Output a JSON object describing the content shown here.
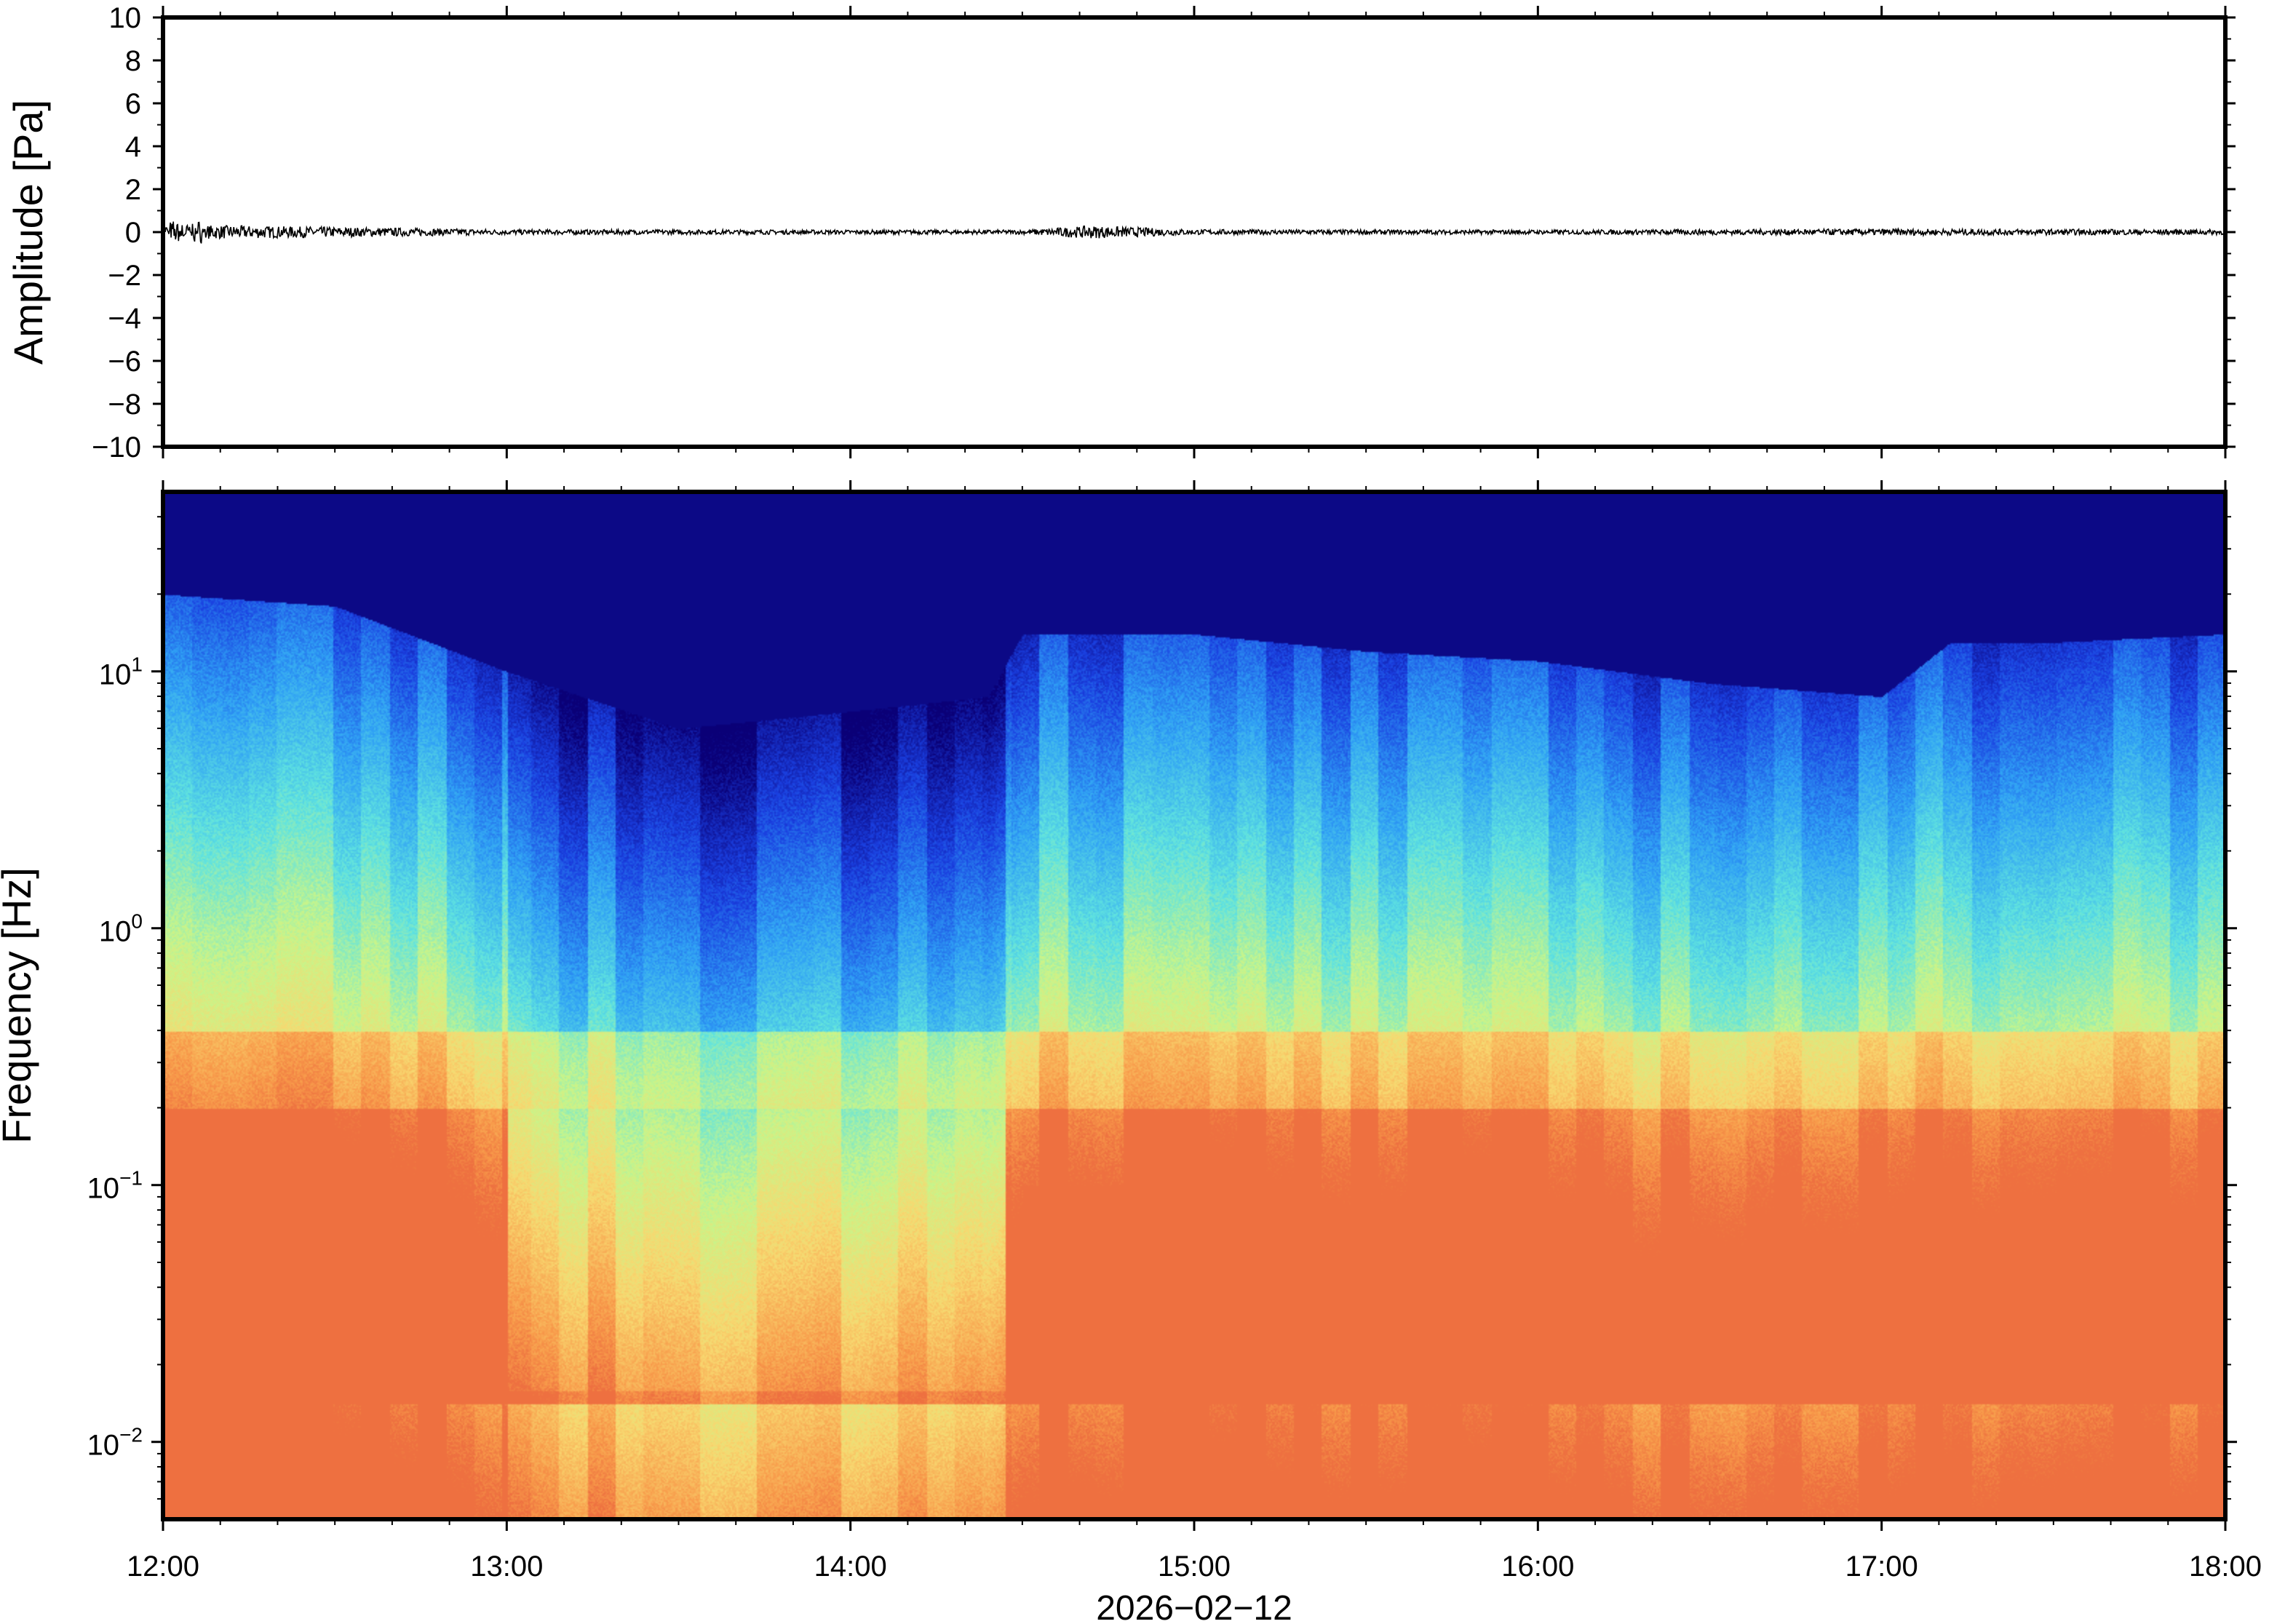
{
  "chart_data": [
    {
      "type": "line",
      "title": "",
      "xlabel": "",
      "ylabel": "Amplitude [Pa]",
      "ylim": [
        -10,
        10
      ],
      "y_ticks": [
        10,
        8,
        6,
        4,
        2,
        0,
        -2,
        -4,
        -6,
        -8,
        -10
      ],
      "y_tick_labels": [
        "10",
        "8",
        "6",
        "4",
        "2",
        "0",
        "−2",
        "−4",
        "−6",
        "−8",
        "−10"
      ],
      "x_range": [
        "12:00",
        "18:00"
      ],
      "series": [
        {
          "description_values_hours": [
            0,
            1,
            2,
            2.5,
            2.7,
            3,
            4,
            5,
            6
          ],
          "values": [
            0.05,
            0.0,
            0.0,
            0.0,
            0.1,
            0.0,
            0.0,
            0.0,
            0.0
          ],
          "noise_envelope": [
            0.35,
            0.12,
            0.1,
            0.1,
            0.3,
            0.12,
            0.1,
            0.15,
            0.12
          ]
        }
      ],
      "color": "#000000",
      "grid": false
    },
    {
      "type": "heatmap",
      "title": "",
      "xlabel": "2026−02−12",
      "ylabel": "Frequency [Hz]",
      "y_scale": "log",
      "ylim_hz": [
        0.005,
        50
      ],
      "y_ticks": [
        {
          "base": "10",
          "exp": "1"
        },
        {
          "base": "10",
          "exp": "0"
        },
        {
          "base": "10",
          "exp": "−1"
        },
        {
          "base": "10",
          "exp": "−2"
        }
      ],
      "x_tick_labels": [
        "12:00",
        "13:00",
        "14:00",
        "15:00",
        "16:00",
        "17:00",
        "18:00"
      ],
      "x_range_hours": [
        12,
        18
      ],
      "colormap": [
        "#0a0077",
        "#1a3fe0",
        "#2fa0f5",
        "#5fe3e0",
        "#c8f58a",
        "#f8d870",
        "#f89a4a",
        "#e85a3a"
      ],
      "upper_boundary_hz_by_hour": [
        [
          12.0,
          20
        ],
        [
          12.5,
          18
        ],
        [
          13.0,
          10
        ],
        [
          13.5,
          6
        ],
        [
          14.0,
          7
        ],
        [
          14.4,
          8
        ],
        [
          14.5,
          14
        ],
        [
          15.0,
          14
        ],
        [
          15.5,
          12
        ],
        [
          16.0,
          11
        ],
        [
          16.5,
          9
        ],
        [
          17.0,
          8
        ],
        [
          17.2,
          13
        ],
        [
          17.5,
          13
        ],
        [
          18.0,
          14
        ]
      ],
      "grid": false
    }
  ]
}
